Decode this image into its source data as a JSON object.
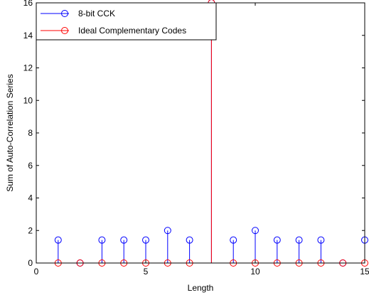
{
  "chart_data": {
    "type": "stem",
    "title": "",
    "xlabel": "Length",
    "ylabel": "Sum of Auto-Correlation Series",
    "xlim": [
      0,
      15
    ],
    "ylim": [
      0,
      16
    ],
    "x_ticks": [
      0,
      5,
      10,
      15
    ],
    "y_ticks": [
      0,
      2,
      4,
      6,
      8,
      10,
      12,
      14,
      16
    ],
    "grid": false,
    "legend_position": "top-left",
    "series": [
      {
        "name": "8-bit CCK",
        "color": "#0000ff",
        "marker": "circle",
        "x": [
          1,
          2,
          3,
          4,
          5,
          6,
          7,
          8,
          9,
          10,
          11,
          12,
          13,
          14,
          15
        ],
        "y": [
          1.414,
          0,
          1.414,
          1.414,
          1.414,
          2,
          1.414,
          16,
          1.414,
          2,
          1.414,
          1.414,
          1.414,
          0,
          1.414
        ]
      },
      {
        "name": "Ideal Complementary Codes",
        "color": "#ff0000",
        "marker": "circle",
        "x": [
          1,
          2,
          3,
          4,
          5,
          6,
          7,
          8,
          9,
          10,
          11,
          12,
          13,
          14,
          15
        ],
        "y": [
          0,
          0,
          0,
          0,
          0,
          0,
          0,
          16,
          0,
          0,
          0,
          0,
          0,
          0,
          0
        ]
      }
    ]
  }
}
